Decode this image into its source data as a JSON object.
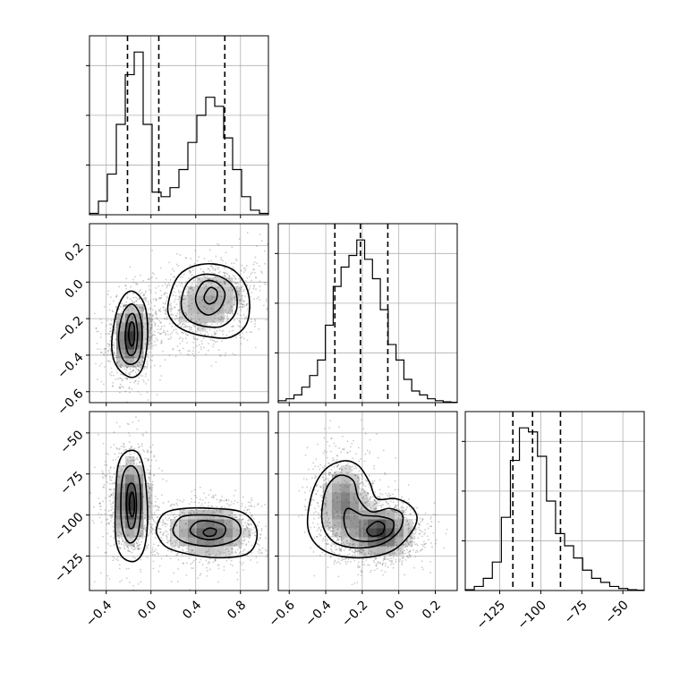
{
  "chart_data": {
    "type": "corner",
    "title": "",
    "parameters": [
      {
        "index": 0,
        "range": [
          -0.55,
          1.05
        ],
        "ticks": [
          -0.4,
          0.0,
          0.4,
          0.8
        ],
        "tick_labels": [
          "−0.4",
          "0.0",
          "0.4",
          "0.8"
        ],
        "quantiles": [
          -0.21,
          0.07,
          0.66
        ],
        "histogram": {
          "bin_edges": [
            -0.55,
            -0.47,
            -0.39,
            -0.31,
            -0.23,
            -0.15,
            -0.07,
            0.01,
            0.09,
            0.17,
            0.25,
            0.33,
            0.41,
            0.49,
            0.57,
            0.65,
            0.73,
            0.81,
            0.89,
            0.97,
            1.05
          ],
          "counts": [
            0.3,
            3,
            9,
            20,
            31,
            36,
            20,
            5,
            4,
            6,
            10,
            16,
            22,
            26,
            24,
            17,
            10,
            4,
            1,
            0.3
          ]
        }
      },
      {
        "index": 1,
        "range": [
          -0.66,
          0.32
        ],
        "ticks": [
          -0.6,
          -0.4,
          -0.2,
          0.0,
          0.2
        ],
        "tick_labels": [
          "−0.6",
          "−0.4",
          "−0.2",
          "0.0",
          "0.2"
        ],
        "quantiles": [
          -0.35,
          -0.21,
          -0.06
        ],
        "histogram": {
          "bin_edges": [
            -0.66,
            -0.617,
            -0.574,
            -0.531,
            -0.488,
            -0.445,
            -0.402,
            -0.359,
            -0.316,
            -0.273,
            -0.23,
            -0.187,
            -0.144,
            -0.101,
            -0.058,
            -0.015,
            0.028,
            0.071,
            0.114,
            0.157,
            0.2,
            0.243,
            0.286,
            0.32
          ],
          "counts": [
            0.5,
            1,
            2,
            4,
            7,
            11,
            20,
            30,
            35,
            38,
            42,
            37,
            32,
            24,
            15,
            11,
            6,
            3,
            2,
            1,
            0.5,
            0.2,
            0.1
          ]
        }
      },
      {
        "index": 2,
        "range": [
          -146,
          -37
        ],
        "ticks": [
          -125,
          -100,
          -75,
          -50
        ],
        "tick_labels": [
          "−125",
          "−100",
          "−75",
          "−50"
        ],
        "quantiles": [
          -117,
          -105,
          -88
        ],
        "histogram": {
          "bin_edges": [
            -146,
            -140.5,
            -135,
            -129.5,
            -124,
            -118.5,
            -113,
            -107.5,
            -102,
            -96.5,
            -91,
            -85.5,
            -80,
            -74.5,
            -69,
            -63.5,
            -58,
            -52.5,
            -47,
            -41.5,
            -37
          ],
          "counts": [
            0.2,
            1,
            3,
            7,
            18,
            32,
            40,
            39,
            33,
            22,
            14,
            11,
            8,
            5,
            3,
            2,
            1,
            0.5,
            0.2,
            0.1
          ]
        }
      }
    ],
    "panels": [
      {
        "row": 1,
        "col": 0,
        "components": [
          {
            "cx": -0.18,
            "cy": -0.3,
            "sx": 0.09,
            "sy": 0.1,
            "rho": 0.15,
            "w": 0.5
          },
          {
            "cx": 0.52,
            "cy": -0.11,
            "sx": 0.2,
            "sy": 0.1,
            "rho": 0.25,
            "w": 0.5
          }
        ],
        "contours": [
          {
            "level": "outer",
            "points": [
              [
                -0.35,
                -0.32
              ],
              [
                -0.3,
                -0.15
              ],
              [
                -0.22,
                -0.06
              ],
              [
                -0.13,
                -0.06
              ],
              [
                -0.05,
                -0.14
              ],
              [
                -0.03,
                -0.3
              ],
              [
                -0.07,
                -0.46
              ],
              [
                -0.15,
                -0.52
              ],
              [
                -0.25,
                -0.5
              ],
              [
                -0.33,
                -0.43
              ]
            ]
          },
          {
            "level": "mid",
            "points": [
              [
                -0.29,
                -0.3
              ],
              [
                -0.25,
                -0.17
              ],
              [
                -0.17,
                -0.12
              ],
              [
                -0.1,
                -0.18
              ],
              [
                -0.08,
                -0.3
              ],
              [
                -0.11,
                -0.42
              ],
              [
                -0.19,
                -0.45
              ],
              [
                -0.26,
                -0.41
              ]
            ]
          },
          {
            "level": "inner",
            "points": [
              [
                -0.23,
                -0.28
              ],
              [
                -0.2,
                -0.19
              ],
              [
                -0.15,
                -0.18
              ],
              [
                -0.12,
                -0.28
              ],
              [
                -0.14,
                -0.38
              ],
              [
                -0.19,
                -0.4
              ],
              [
                -0.22,
                -0.36
              ]
            ]
          },
          {
            "level": "core",
            "points": [
              [
                -0.2,
                -0.28
              ],
              [
                -0.18,
                -0.22
              ],
              [
                -0.15,
                -0.24
              ],
              [
                -0.15,
                -0.32
              ],
              [
                -0.17,
                -0.35
              ],
              [
                -0.19,
                -0.33
              ]
            ]
          },
          {
            "level": "outer",
            "points": [
              [
                0.15,
                -0.14
              ],
              [
                0.22,
                0.01
              ],
              [
                0.35,
                0.08
              ],
              [
                0.55,
                0.1
              ],
              [
                0.75,
                0.06
              ],
              [
                0.87,
                -0.06
              ],
              [
                0.86,
                -0.22
              ],
              [
                0.72,
                -0.3
              ],
              [
                0.52,
                -0.3
              ],
              [
                0.32,
                -0.27
              ],
              [
                0.2,
                -0.22
              ]
            ]
          },
          {
            "level": "mid",
            "points": [
              [
                0.27,
                -0.12
              ],
              [
                0.32,
                -0.01
              ],
              [
                0.45,
                0.04
              ],
              [
                0.62,
                0.03
              ],
              [
                0.75,
                -0.04
              ],
              [
                0.76,
                -0.16
              ],
              [
                0.64,
                -0.24
              ],
              [
                0.46,
                -0.24
              ],
              [
                0.32,
                -0.2
              ]
            ]
          },
          {
            "level": "inner",
            "points": [
              [
                0.4,
                -0.08
              ],
              [
                0.47,
                0.0
              ],
              [
                0.58,
                0.0
              ],
              [
                0.66,
                -0.06
              ],
              [
                0.62,
                -0.14
              ],
              [
                0.52,
                -0.18
              ],
              [
                0.43,
                -0.15
              ]
            ]
          },
          {
            "level": "core",
            "points": [
              [
                0.48,
                -0.07
              ],
              [
                0.53,
                -0.03
              ],
              [
                0.59,
                -0.05
              ],
              [
                0.58,
                -0.1
              ],
              [
                0.52,
                -0.12
              ],
              [
                0.48,
                -0.1
              ]
            ]
          }
        ]
      },
      {
        "row": 2,
        "col": 0,
        "components": [
          {
            "cx": -0.18,
            "cy": -92,
            "sx": 0.09,
            "sy": 14,
            "rho": 0.0,
            "w": 0.5
          },
          {
            "cx": 0.52,
            "cy": -110,
            "sx": 0.2,
            "sy": 8,
            "rho": 0.0,
            "w": 0.5
          }
        ],
        "contours": [
          {
            "level": "outer",
            "points": [
              [
                -0.32,
                -100
              ],
              [
                -0.3,
                -72
              ],
              [
                -0.23,
                -62
              ],
              [
                -0.12,
                -62
              ],
              [
                -0.06,
                -74
              ],
              [
                -0.03,
                -100
              ],
              [
                -0.06,
                -120
              ],
              [
                -0.14,
                -128
              ],
              [
                -0.25,
                -126
              ],
              [
                -0.31,
                -117
              ]
            ]
          },
          {
            "level": "mid",
            "points": [
              [
                -0.27,
                -95
              ],
              [
                -0.25,
                -76
              ],
              [
                -0.18,
                -70
              ],
              [
                -0.11,
                -76
              ],
              [
                -0.09,
                -95
              ],
              [
                -0.12,
                -112
              ],
              [
                -0.19,
                -117
              ],
              [
                -0.25,
                -110
              ]
            ]
          },
          {
            "level": "inner",
            "points": [
              [
                -0.22,
                -92
              ],
              [
                -0.2,
                -82
              ],
              [
                -0.15,
                -82
              ],
              [
                -0.13,
                -94
              ],
              [
                -0.15,
                -106
              ],
              [
                -0.19,
                -108
              ],
              [
                -0.21,
                -102
              ]
            ]
          },
          {
            "level": "core",
            "points": [
              [
                -0.19,
                -90
              ],
              [
                -0.17,
                -86
              ],
              [
                -0.15,
                -90
              ],
              [
                -0.15,
                -98
              ],
              [
                -0.17,
                -101
              ],
              [
                -0.19,
                -97
              ]
            ]
          },
          {
            "level": "outer",
            "points": [
              [
                0.05,
                -108
              ],
              [
                0.12,
                -99
              ],
              [
                0.3,
                -96
              ],
              [
                0.55,
                -96
              ],
              [
                0.8,
                -98
              ],
              [
                0.93,
                -106
              ],
              [
                0.94,
                -116
              ],
              [
                0.85,
                -124
              ],
              [
                0.6,
                -126
              ],
              [
                0.35,
                -124
              ],
              [
                0.15,
                -120
              ],
              [
                0.07,
                -114
              ]
            ]
          },
          {
            "level": "mid",
            "points": [
              [
                0.2,
                -108
              ],
              [
                0.28,
                -101
              ],
              [
                0.5,
                -100
              ],
              [
                0.72,
                -102
              ],
              [
                0.8,
                -108
              ],
              [
                0.76,
                -115
              ],
              [
                0.55,
                -119
              ],
              [
                0.32,
                -117
              ],
              [
                0.22,
                -113
              ]
            ]
          },
          {
            "level": "inner",
            "points": [
              [
                0.35,
                -109
              ],
              [
                0.42,
                -104
              ],
              [
                0.55,
                -104
              ],
              [
                0.66,
                -107
              ],
              [
                0.64,
                -113
              ],
              [
                0.52,
                -115
              ],
              [
                0.4,
                -113
              ]
            ]
          },
          {
            "level": "core",
            "points": [
              [
                0.47,
                -110
              ],
              [
                0.52,
                -108
              ],
              [
                0.58,
                -109
              ],
              [
                0.57,
                -112
              ],
              [
                0.52,
                -113
              ],
              [
                0.48,
                -112
              ]
            ]
          }
        ]
      },
      {
        "row": 2,
        "col": 1,
        "components": [
          {
            "cx": -0.3,
            "cy": -93,
            "sx": 0.07,
            "sy": 13,
            "rho": 0.0,
            "w": 0.45
          },
          {
            "cx": -0.1,
            "cy": -110,
            "sx": 0.09,
            "sy": 8,
            "rho": 0.0,
            "w": 0.55
          }
        ],
        "contours": [
          {
            "level": "outer",
            "points": [
              [
                -0.5,
                -105
              ],
              [
                -0.47,
                -85
              ],
              [
                -0.4,
                -72
              ],
              [
                -0.3,
                -67
              ],
              [
                -0.22,
                -70
              ],
              [
                -0.16,
                -80
              ],
              [
                -0.12,
                -90
              ],
              [
                -0.02,
                -90
              ],
              [
                0.06,
                -94
              ],
              [
                0.1,
                -102
              ],
              [
                0.06,
                -112
              ],
              [
                -0.04,
                -122
              ],
              [
                -0.2,
                -126
              ],
              [
                -0.36,
                -124
              ],
              [
                -0.46,
                -117
              ]
            ]
          },
          {
            "level": "mid",
            "points": [
              [
                -0.42,
                -104
              ],
              [
                -0.4,
                -85
              ],
              [
                -0.33,
                -76
              ],
              [
                -0.25,
                -79
              ],
              [
                -0.22,
                -90
              ],
              [
                -0.15,
                -98
              ],
              [
                -0.05,
                -96
              ],
              [
                0.02,
                -100
              ],
              [
                0.0,
                -110
              ],
              [
                -0.1,
                -118
              ],
              [
                -0.24,
                -120
              ],
              [
                -0.36,
                -116
              ]
            ]
          },
          {
            "level": "inner",
            "points": [
              [
                -0.3,
                -104
              ],
              [
                -0.28,
                -96
              ],
              [
                -0.2,
                -100
              ],
              [
                -0.1,
                -101
              ],
              [
                -0.03,
                -104
              ],
              [
                -0.05,
                -112
              ],
              [
                -0.15,
                -116
              ],
              [
                -0.26,
                -114
              ]
            ]
          },
          {
            "level": "core",
            "points": [
              [
                -0.17,
                -108
              ],
              [
                -0.12,
                -104
              ],
              [
                -0.08,
                -106
              ],
              [
                -0.09,
                -111
              ],
              [
                -0.14,
                -113
              ],
              [
                -0.17,
                -111
              ]
            ]
          }
        ]
      }
    ]
  }
}
